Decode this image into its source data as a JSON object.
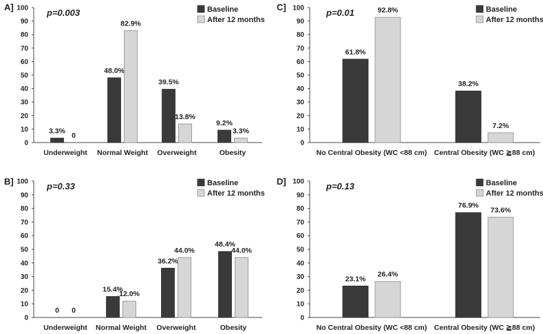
{
  "colors": {
    "baseline": "#3a3a3a",
    "after": "#d6d6d6",
    "axis": "#444444",
    "text": "#222222"
  },
  "chart_data": [
    {
      "type": "bar",
      "panel": "A]",
      "annotation": "p=0.003",
      "ylim": [
        0,
        100
      ],
      "yticks": [
        "0",
        "10",
        "20",
        "30",
        "40",
        "50",
        "60",
        "70",
        "80",
        "90",
        "100"
      ],
      "categories": [
        "Underweight",
        "Normal Weight",
        "Overweight",
        "Obesity"
      ],
      "series": [
        {
          "name": "Baseline",
          "values": [
            3.3,
            48.0,
            39.5,
            9.2
          ],
          "labels": [
            "3.3%",
            "48.0%",
            "39.5%",
            "9.2%"
          ]
        },
        {
          "name": "After 12 months",
          "values": [
            0,
            82.9,
            13.8,
            3.3
          ],
          "labels": [
            "0",
            "82.9%",
            "13.8%",
            "3.3%"
          ]
        }
      ],
      "legend": [
        "Baseline",
        "After 12 months"
      ]
    },
    {
      "type": "bar",
      "panel": "B]",
      "annotation": "p=0.33",
      "ylim": [
        0,
        100
      ],
      "yticks": [
        "0",
        "10",
        "20",
        "30",
        "40",
        "50",
        "60",
        "70",
        "80",
        "90",
        "100"
      ],
      "categories": [
        "Underweight",
        "Normal Weight",
        "Overweight",
        "Obesity"
      ],
      "series": [
        {
          "name": "Baseline",
          "values": [
            0,
            15.4,
            36.2,
            48.4
          ],
          "labels": [
            "0",
            "15.4%",
            "36.2%",
            "48.4%"
          ]
        },
        {
          "name": "After 12 months",
          "values": [
            0,
            12.0,
            44.0,
            44.0
          ],
          "labels": [
            "0",
            "12.0%",
            "44.0%",
            "44.0%"
          ]
        }
      ],
      "legend": [
        "Baseline",
        "After 12 months"
      ]
    },
    {
      "type": "bar",
      "panel": "C]",
      "annotation": "p=0.01",
      "ylim": [
        0,
        100
      ],
      "yticks": [
        "0",
        "10",
        "20",
        "30",
        "40",
        "50",
        "60",
        "70",
        "80",
        "90",
        "100"
      ],
      "categories": [
        "No Central Obesity (WC <88 cm)",
        "Central Obesity (WC ≧88 cm)"
      ],
      "series": [
        {
          "name": "Baseline",
          "values": [
            61.8,
            38.2
          ],
          "labels": [
            "61.8%",
            "38.2%"
          ]
        },
        {
          "name": "After 12 months",
          "values": [
            92.8,
            7.2
          ],
          "labels": [
            "92.8%",
            "7.2%"
          ]
        }
      ],
      "legend": [
        "Baseline",
        "After 12 months"
      ]
    },
    {
      "type": "bar",
      "panel": "D]",
      "annotation": "p=0.13",
      "ylim": [
        0,
        100
      ],
      "yticks": [
        "0",
        "10",
        "20",
        "30",
        "40",
        "50",
        "60",
        "70",
        "80",
        "90",
        "100"
      ],
      "categories": [
        "No Central Obesity (WC <88 cm)",
        "Central Obesity (WC ≧88 cm)"
      ],
      "series": [
        {
          "name": "Baseline",
          "values": [
            23.1,
            76.9
          ],
          "labels": [
            "23.1%",
            "76.9%"
          ]
        },
        {
          "name": "After 12 months",
          "values": [
            26.4,
            73.6
          ],
          "labels": [
            "26.4%",
            "73.6%"
          ]
        }
      ],
      "legend": [
        "Baseline",
        "After 12 months"
      ]
    }
  ]
}
